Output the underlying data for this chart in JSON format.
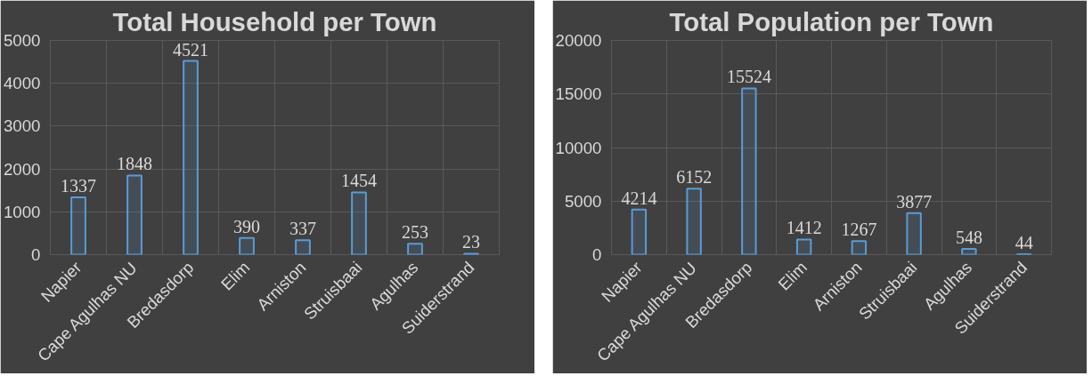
{
  "chart_data": [
    {
      "type": "bar",
      "title": "Total Household per Town",
      "categories": [
        "Napier",
        "Cape Agulhas NU",
        "Bredasdorp",
        "Elim",
        "Arniston",
        "Struisbaai",
        "Agulhas",
        "Suiderstrand"
      ],
      "series": [
        {
          "color": "#5b9bd5",
          "values": [
            1337,
            1848,
            4521,
            390,
            337,
            1454,
            253,
            23
          ]
        }
      ],
      "ylim": [
        0,
        5000
      ],
      "yticks": [
        0,
        1000,
        2000,
        3000,
        4000,
        5000
      ],
      "grid": true,
      "data_labels": true
    },
    {
      "type": "bar",
      "title": "Total Population per Town",
      "categories": [
        "Napier",
        "Cape Agulhas NU",
        "Bredasdorp",
        "Elim",
        "Arniston",
        "Struisbaai",
        "Agulhas",
        "Suiderstrand"
      ],
      "series": [
        {
          "color": "#5b9bd5",
          "values": [
            4214,
            6152,
            15524,
            1412,
            1267,
            3877,
            548,
            44
          ]
        }
      ],
      "ylim": [
        0,
        20000
      ],
      "yticks": [
        0,
        5000,
        10000,
        15000,
        20000
      ],
      "grid": true,
      "data_labels": true
    }
  ]
}
